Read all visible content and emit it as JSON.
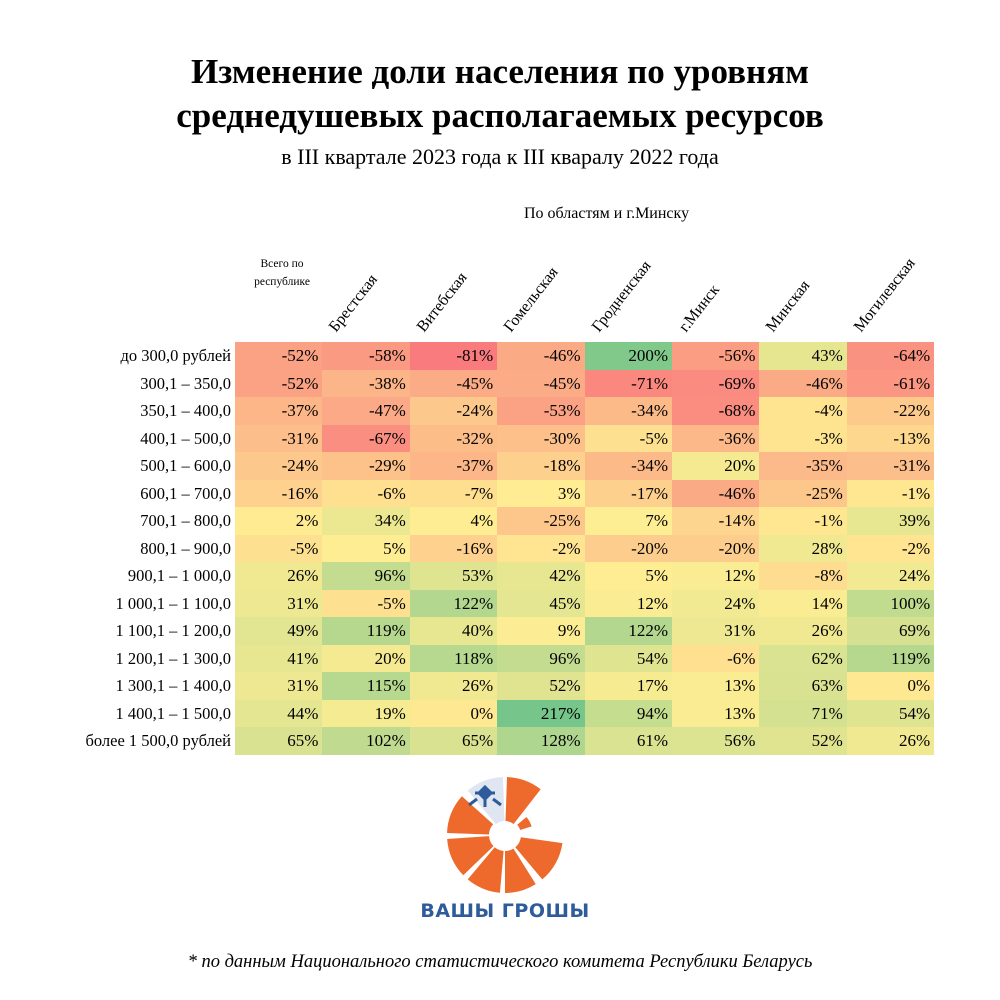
{
  "chart_data": {
    "type": "heatmap",
    "title": "Изменение доли населения по уровням среднедушевых располагаемых ресурсов",
    "subtitle": "в III квартале 2023 года к III кваралу 2022 года",
    "column_group_label": "По областям и г.Минску",
    "total_column": "Всего по республике",
    "columns": [
      "Всего по республике",
      "Брестская",
      "Витебская",
      "Гомельская",
      "Гродненская",
      "г.Минск",
      "Минская",
      "Могилевская"
    ],
    "rows": [
      "до 300,0 рублей",
      "300,1 – 350,0",
      "350,1 – 400,0",
      "400,1 – 500,0",
      "500,1 – 600,0",
      "600,1 – 700,0",
      "700,1 – 800,0",
      "800,1 – 900,0",
      "900,1 – 1 000,0",
      "1 000,1 – 1 100,0",
      "1 100,1 – 1 200,0",
      "1 200,1 – 1 300,0",
      "1 300,1 – 1 400,0",
      "1 400,1 – 1 500,0",
      "более 1 500,0 рублей"
    ],
    "unit": "%",
    "values": [
      [
        -52,
        -58,
        -81,
        -46,
        200,
        -56,
        43,
        -64
      ],
      [
        -52,
        -38,
        -45,
        -45,
        -71,
        -69,
        -46,
        -61
      ],
      [
        -37,
        -47,
        -24,
        -53,
        -34,
        -68,
        -4,
        -22
      ],
      [
        -31,
        -67,
        -32,
        -30,
        -5,
        -36,
        -3,
        -13
      ],
      [
        -24,
        -29,
        -37,
        -18,
        -34,
        20,
        -35,
        -31
      ],
      [
        -16,
        -6,
        -7,
        3,
        -17,
        -46,
        -25,
        -1
      ],
      [
        2,
        34,
        4,
        -25,
        7,
        -14,
        -1,
        39
      ],
      [
        -5,
        5,
        -16,
        -2,
        -20,
        -20,
        28,
        -2
      ],
      [
        26,
        96,
        53,
        42,
        5,
        12,
        -8,
        24
      ],
      [
        31,
        -5,
        122,
        45,
        12,
        24,
        14,
        100
      ],
      [
        49,
        119,
        40,
        9,
        122,
        31,
        26,
        69
      ],
      [
        41,
        20,
        118,
        96,
        54,
        -6,
        62,
        119
      ],
      [
        31,
        115,
        26,
        52,
        17,
        13,
        63,
        0
      ],
      [
        44,
        19,
        0,
        217,
        94,
        13,
        71,
        54
      ],
      [
        65,
        102,
        65,
        128,
        61,
        56,
        52,
        26
      ]
    ],
    "color_scale": {
      "low": "#f8696b",
      "mid": "#ffeb84",
      "high": "#63be7b"
    }
  },
  "header": {
    "title_line1": "Изменение доли населения по уровням",
    "title_line2": "среднедушевых располагаемых ресурсов",
    "subtitle": "в III квартале 2023 года к III кваралу 2022 года",
    "group_label": "По областям и г.Минску",
    "total_line1": "Всего по",
    "total_line2": "республике"
  },
  "logo": {
    "text": "ВАШЫ ГРОШЫ",
    "orange": "#ee6a2c",
    "blue": "#2e5b9a"
  },
  "footer": "* по данным Национального статистического комитета Республики Беларусь"
}
